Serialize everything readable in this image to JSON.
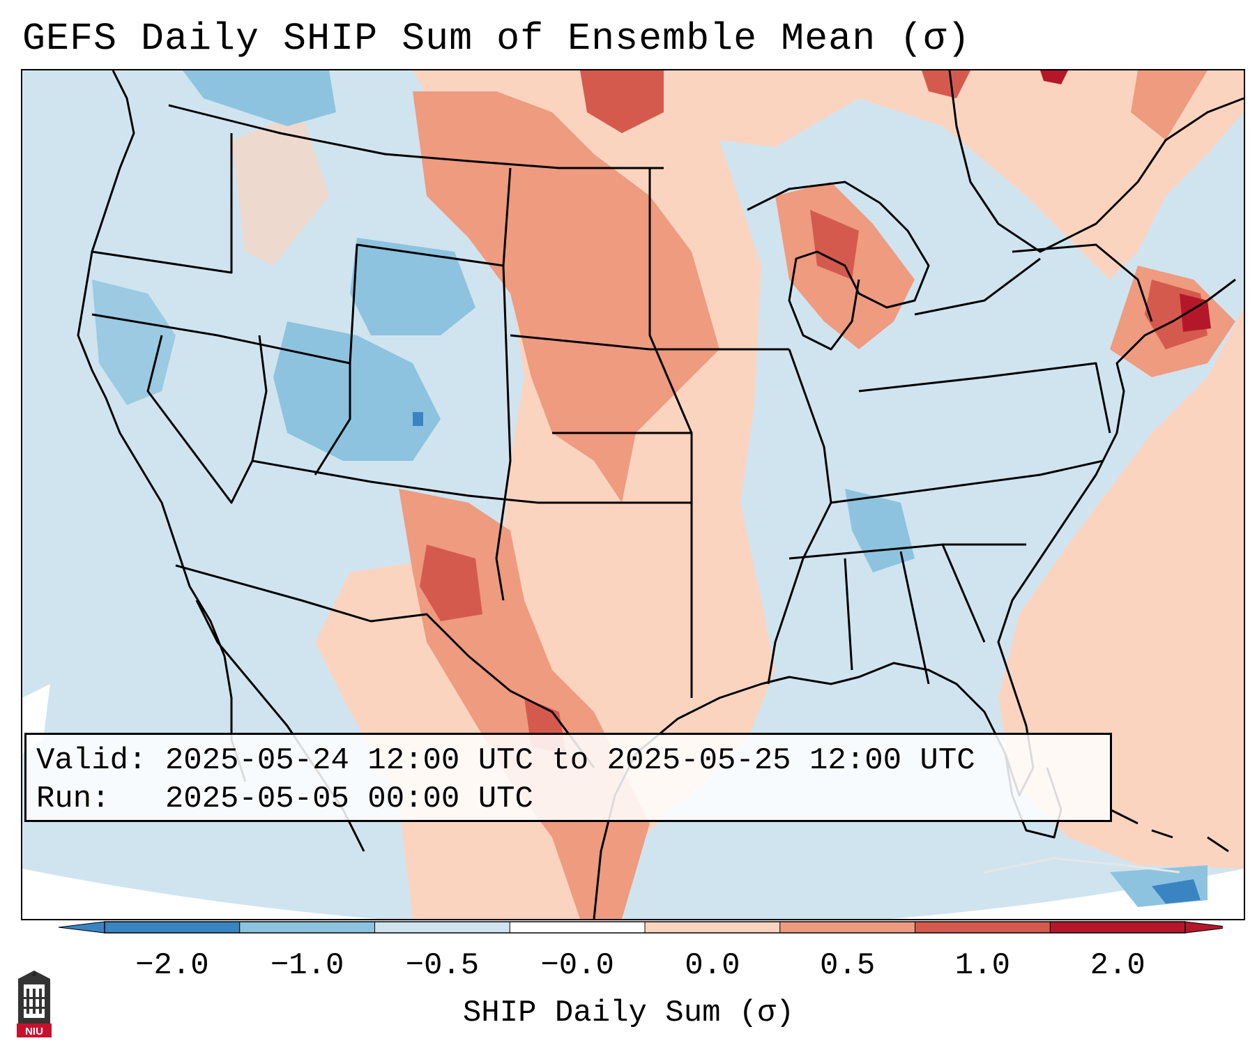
{
  "title": "GEFS Daily SHIP Sum of Ensemble Mean (σ)",
  "info_box": {
    "valid_label": "Valid:",
    "valid_value": "2025-05-24 12:00 UTC to 2025-05-25 12:00 UTC",
    "run_label": "Run:",
    "run_value": "2025-05-05 00:00 UTC"
  },
  "colorbar": {
    "label": "SHIP Daily Sum (σ)",
    "ticks": [
      "−2.0",
      "−1.0",
      "−0.5",
      "−0.0",
      "0.0",
      "0.5",
      "1.0",
      "2.0"
    ],
    "colors": [
      "#3a84c2",
      "#8dc3df",
      "#cfe4ef",
      "#ffffff",
      "#fbd4c0",
      "#ee9b7f",
      "#d55a4e",
      "#b5172a"
    ],
    "extend": "both"
  },
  "legend_colors": {
    "strong_neg": "#3a84c2",
    "neg": "#8dc3df",
    "weak_neg": "#cfe4ef",
    "weak_pos": "#fbd4c0",
    "pos": "#ee9b7f",
    "strong_pos": "#d55a4e",
    "very_strong_pos": "#b5172a",
    "no_data": "#ffffff"
  },
  "logo": {
    "text": "NIU",
    "icon": "niu-logo-icon"
  }
}
